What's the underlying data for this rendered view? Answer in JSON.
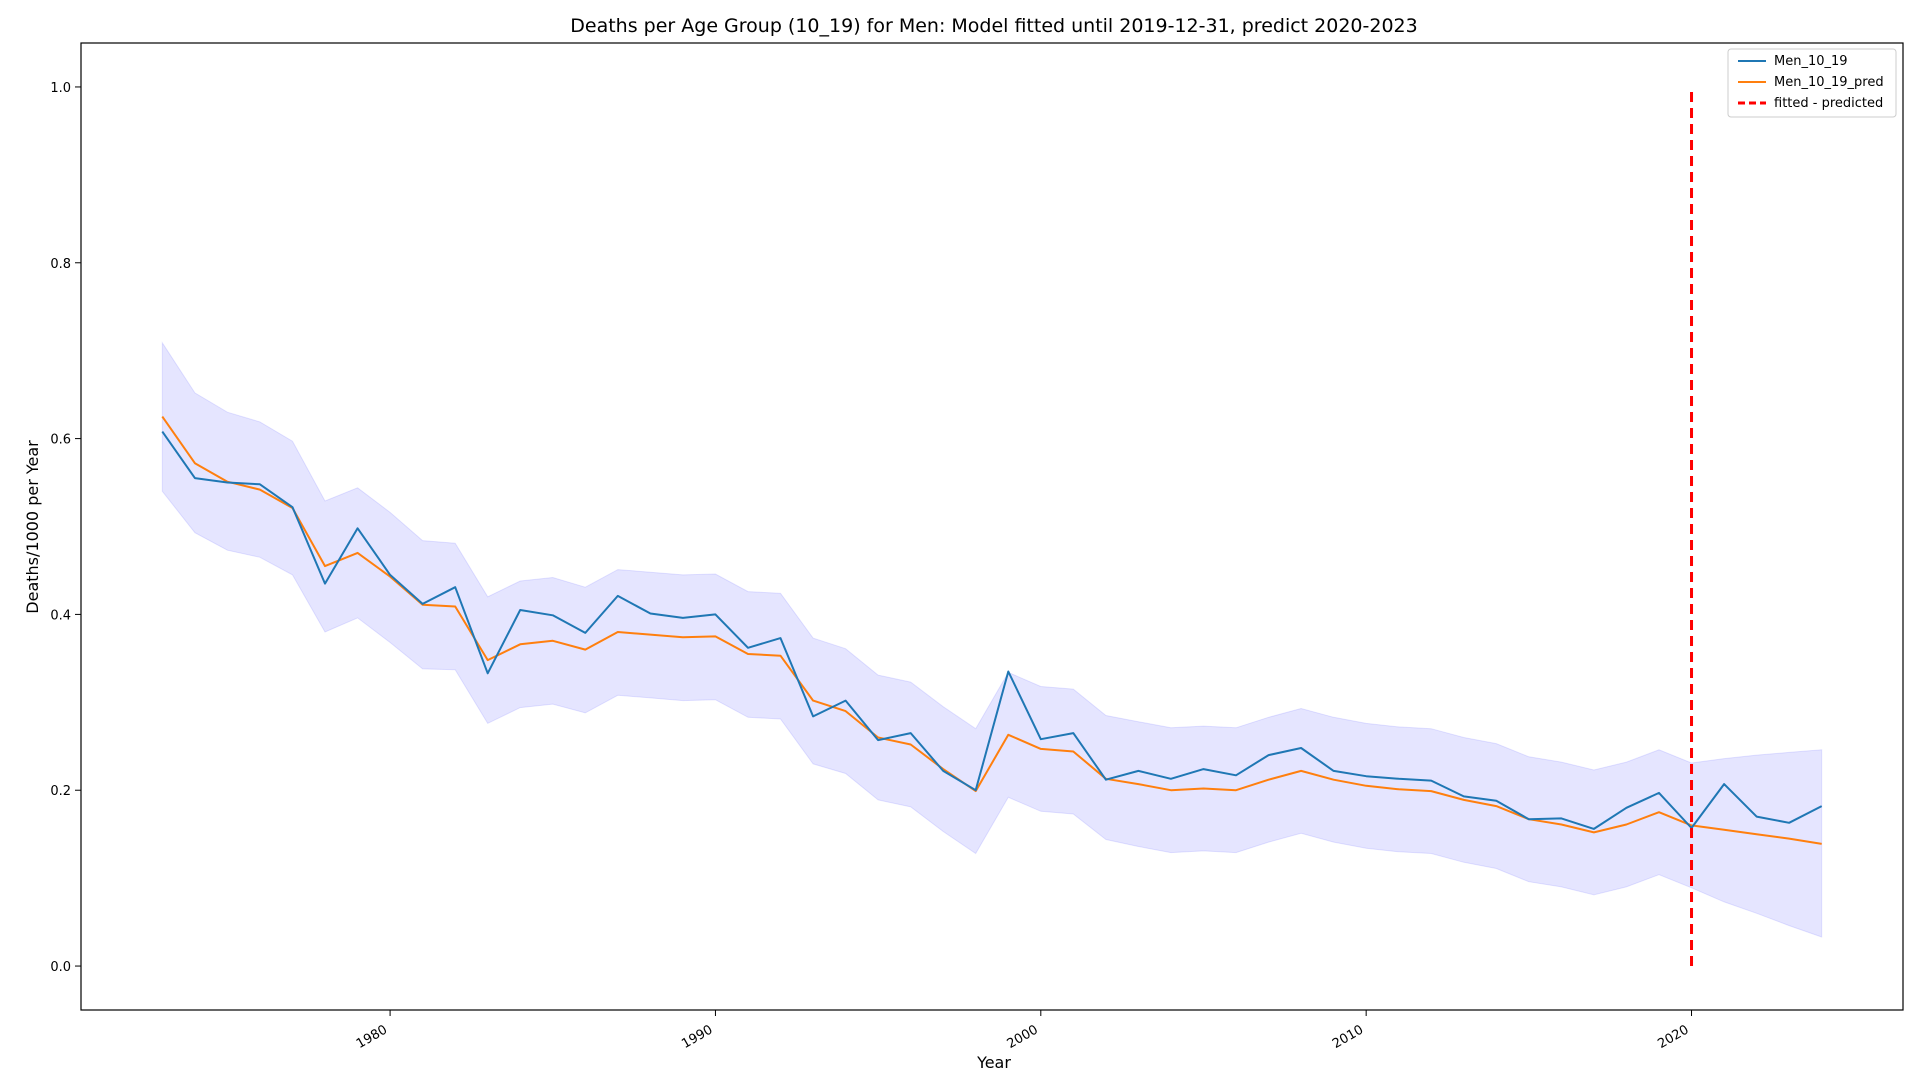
{
  "chart_data": {
    "type": "line",
    "title": "Deaths per Age Group (10_19) for Men: Model fitted until 2019-12-31, predict 2020-2023",
    "xlabel": "Year",
    "ylabel": "Deaths/1000 per Year",
    "xlim": [
      1970.5,
      2026.5
    ],
    "ylim": [
      -0.05,
      1.05
    ],
    "x_ticks": [
      1980,
      1990,
      2000,
      2010,
      2020
    ],
    "y_ticks": [
      0.0,
      0.2,
      0.4,
      0.6,
      0.8,
      1.0
    ],
    "grid": false,
    "legend_position": "top-right",
    "x": [
      1973,
      1974,
      1975,
      1976,
      1977,
      1978,
      1979,
      1980,
      1981,
      1982,
      1983,
      1984,
      1985,
      1986,
      1987,
      1988,
      1989,
      1990,
      1991,
      1992,
      1993,
      1994,
      1995,
      1996,
      1997,
      1998,
      1999,
      2000,
      2001,
      2002,
      2003,
      2004,
      2005,
      2006,
      2007,
      2008,
      2009,
      2010,
      2011,
      2012,
      2013,
      2014,
      2015,
      2016,
      2017,
      2018,
      2019,
      2020,
      2021,
      2022,
      2023,
      2024
    ],
    "series": [
      {
        "name": "Men_10_19",
        "color": "#1f77b4",
        "style": "solid",
        "values": [
          0.608,
          0.555,
          0.55,
          0.548,
          0.522,
          0.435,
          0.498,
          0.445,
          0.412,
          0.431,
          0.333,
          0.405,
          0.399,
          0.379,
          0.421,
          0.401,
          0.396,
          0.4,
          0.362,
          0.373,
          0.284,
          0.302,
          0.257,
          0.265,
          0.222,
          0.2,
          0.335,
          0.258,
          0.265,
          0.212,
          0.222,
          0.213,
          0.224,
          0.217,
          0.24,
          0.248,
          0.222,
          0.216,
          0.213,
          0.211,
          0.193,
          0.188,
          0.167,
          0.168,
          0.156,
          0.18,
          0.197,
          0.157,
          0.207,
          0.17,
          0.163,
          0.182
        ]
      },
      {
        "name": "Men_10_19_pred",
        "color": "#ff7f0e",
        "style": "solid",
        "values": [
          0.625,
          0.572,
          0.551,
          0.542,
          0.521,
          0.455,
          0.47,
          0.443,
          0.411,
          0.409,
          0.348,
          0.366,
          0.37,
          0.36,
          0.38,
          0.377,
          0.374,
          0.375,
          0.355,
          0.353,
          0.302,
          0.29,
          0.26,
          0.252,
          0.224,
          0.199,
          0.263,
          0.247,
          0.244,
          0.213,
          0.207,
          0.2,
          0.202,
          0.2,
          0.212,
          0.222,
          0.212,
          0.205,
          0.201,
          0.199,
          0.189,
          0.182,
          0.167,
          0.161,
          0.152,
          0.161,
          0.175,
          0.16,
          0.155,
          0.15,
          0.145,
          0.139
        ]
      }
    ],
    "band": {
      "color": "#0000ff",
      "lower": [
        0.54,
        0.493,
        0.473,
        0.465,
        0.445,
        0.38,
        0.396,
        0.368,
        0.338,
        0.337,
        0.276,
        0.294,
        0.298,
        0.288,
        0.308,
        0.305,
        0.302,
        0.303,
        0.283,
        0.281,
        0.23,
        0.219,
        0.189,
        0.181,
        0.153,
        0.128,
        0.192,
        0.176,
        0.173,
        0.144,
        0.136,
        0.129,
        0.131,
        0.129,
        0.141,
        0.151,
        0.141,
        0.134,
        0.13,
        0.128,
        0.118,
        0.111,
        0.096,
        0.09,
        0.081,
        0.09,
        0.104,
        0.089,
        0.073,
        0.06,
        0.046,
        0.033
      ],
      "upper": [
        0.709,
        0.652,
        0.63,
        0.619,
        0.597,
        0.529,
        0.544,
        0.516,
        0.484,
        0.481,
        0.42,
        0.438,
        0.442,
        0.431,
        0.451,
        0.448,
        0.445,
        0.446,
        0.426,
        0.424,
        0.373,
        0.361,
        0.331,
        0.323,
        0.295,
        0.27,
        0.334,
        0.318,
        0.315,
        0.285,
        0.278,
        0.271,
        0.273,
        0.271,
        0.283,
        0.293,
        0.283,
        0.276,
        0.272,
        0.27,
        0.26,
        0.253,
        0.238,
        0.232,
        0.223,
        0.232,
        0.246,
        0.231,
        0.236,
        0.24,
        0.243,
        0.246
      ]
    },
    "vline": {
      "name": "fitted - predicted",
      "x": 2020,
      "ymin": 0.0,
      "ymax": 1.0,
      "color": "#ff0000",
      "style": "dashed"
    }
  }
}
